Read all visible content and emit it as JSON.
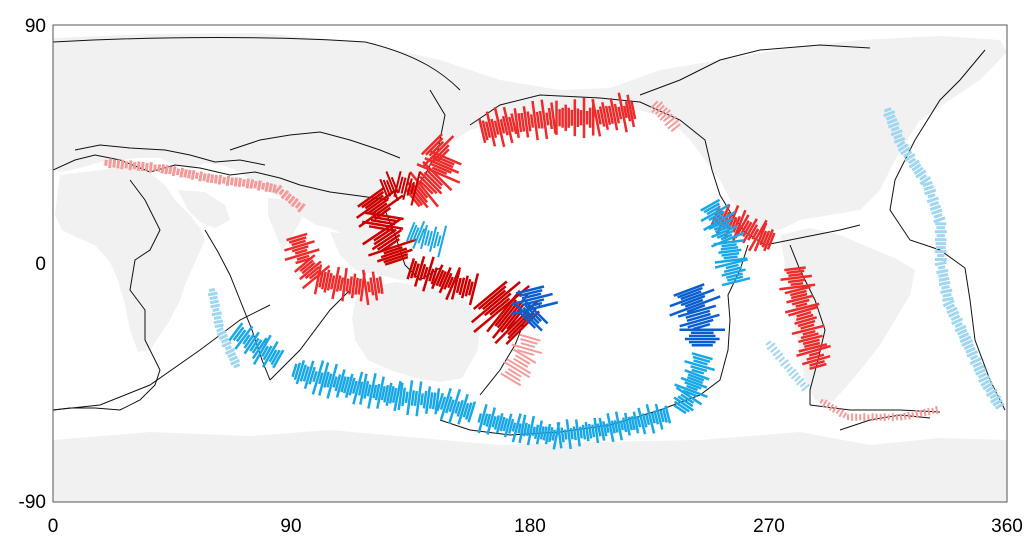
{
  "map": {
    "projection": "equirectangular",
    "x_axis": {
      "range": [
        0,
        360
      ],
      "ticks": [
        "0",
        "90",
        "180",
        "270",
        "360"
      ]
    },
    "y_axis": {
      "range": [
        -90,
        90
      ],
      "ticks": [
        "90",
        "0",
        "-90"
      ]
    },
    "colors": {
      "background": "#ffffff",
      "land": "#f1f1f1",
      "plate_boundary": "#000000",
      "red_strong": "#cc0000",
      "red_medium": "#ee2a2a",
      "red_light": "#f49a9a",
      "blue_strong": "#0a5fd0",
      "blue_medium": "#18a8e8",
      "blue_light": "#9fd6f2"
    },
    "legend": "none",
    "grid": false
  },
  "chart_data": {
    "type": "scatter",
    "title": "",
    "xlabel": "",
    "ylabel": "",
    "xlim": [
      0,
      360
    ],
    "ylim": [
      -90,
      90
    ],
    "xticks": [
      0,
      90,
      180,
      270,
      360
    ],
    "yticks": [
      -90,
      0,
      90
    ],
    "series": [
      {
        "color": "red",
        "points": [
          [
            145,
            42
          ],
          [
            150,
            46
          ],
          [
            160,
            52
          ],
          [
            175,
            55
          ],
          [
            190,
            55
          ],
          [
            205,
            56
          ],
          [
            215,
            58
          ],
          [
            125,
            20
          ],
          [
            122,
            12
          ],
          [
            130,
            5
          ],
          [
            98,
            0
          ],
          [
            102,
            -5
          ],
          [
            108,
            -7
          ],
          [
            116,
            -8
          ],
          [
            148,
            -5
          ],
          [
            155,
            -7
          ],
          [
            160,
            -12
          ],
          [
            170,
            -16
          ],
          [
            176,
            -20
          ],
          [
            250,
            12
          ],
          [
            260,
            10
          ],
          [
            280,
            -8
          ],
          [
            282,
            -20
          ],
          [
            285,
            -30
          ],
          [
            288,
            -40
          ]
        ]
      },
      {
        "color": "blue",
        "points": [
          [
            250,
            20
          ],
          [
            253,
            10
          ],
          [
            255,
            0
          ],
          [
            250,
            -12
          ],
          [
            248,
            -22
          ],
          [
            245,
            -30
          ],
          [
            240,
            -45
          ],
          [
            235,
            -55
          ],
          [
            215,
            -57
          ],
          [
            190,
            -64
          ],
          [
            170,
            -60
          ],
          [
            150,
            -55
          ],
          [
            130,
            -52
          ],
          [
            110,
            -45
          ],
          [
            90,
            -38
          ],
          [
            70,
            -28
          ],
          [
            180,
            -20
          ],
          [
            175,
            -15
          ],
          [
            140,
            12
          ],
          [
            150,
            8
          ]
        ]
      }
    ]
  }
}
